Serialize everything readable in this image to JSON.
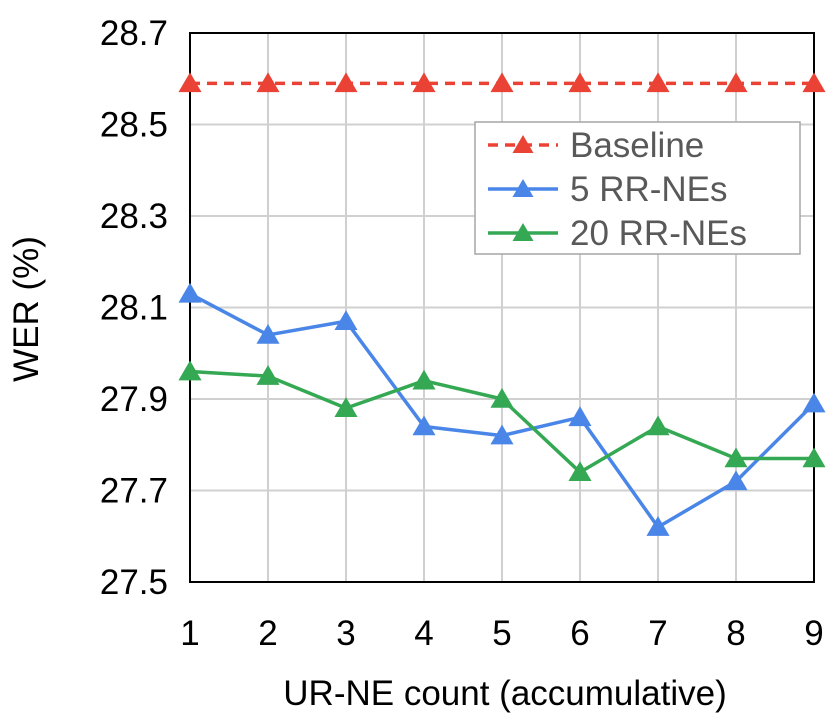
{
  "chart_data": {
    "type": "line",
    "xlabel": "UR-NE count (accumulative)",
    "ylabel": "WER (%)",
    "x": [
      1,
      2,
      3,
      4,
      5,
      6,
      7,
      8,
      9
    ],
    "x_tick_labels": [
      "1",
      "2",
      "3",
      "4",
      "5",
      "6",
      "7",
      "8",
      "9"
    ],
    "ylim": [
      27.5,
      28.7
    ],
    "y_ticks": [
      27.5,
      27.7,
      27.9,
      28.1,
      28.3,
      28.5,
      28.7
    ],
    "y_tick_labels": [
      "27.5",
      "27.7",
      "27.9",
      "28.1",
      "28.3",
      "28.5",
      "28.7"
    ],
    "grid": true,
    "legend_position": "upper-right",
    "series": [
      {
        "name": "Baseline",
        "color": "#ea4335",
        "dashed": true,
        "marker": "triangle",
        "values": [
          28.59,
          28.59,
          28.59,
          28.59,
          28.59,
          28.59,
          28.59,
          28.59,
          28.59
        ]
      },
      {
        "name": "5 RR-NEs",
        "color": "#4a86e8",
        "dashed": false,
        "marker": "triangle",
        "values": [
          28.13,
          28.04,
          28.07,
          27.84,
          27.82,
          27.86,
          27.62,
          27.72,
          27.89
        ]
      },
      {
        "name": "20 RR-NEs",
        "color": "#34a853",
        "dashed": false,
        "marker": "triangle",
        "values": [
          27.96,
          27.95,
          27.88,
          27.94,
          27.9,
          27.74,
          27.84,
          27.77,
          27.77
        ]
      }
    ]
  }
}
